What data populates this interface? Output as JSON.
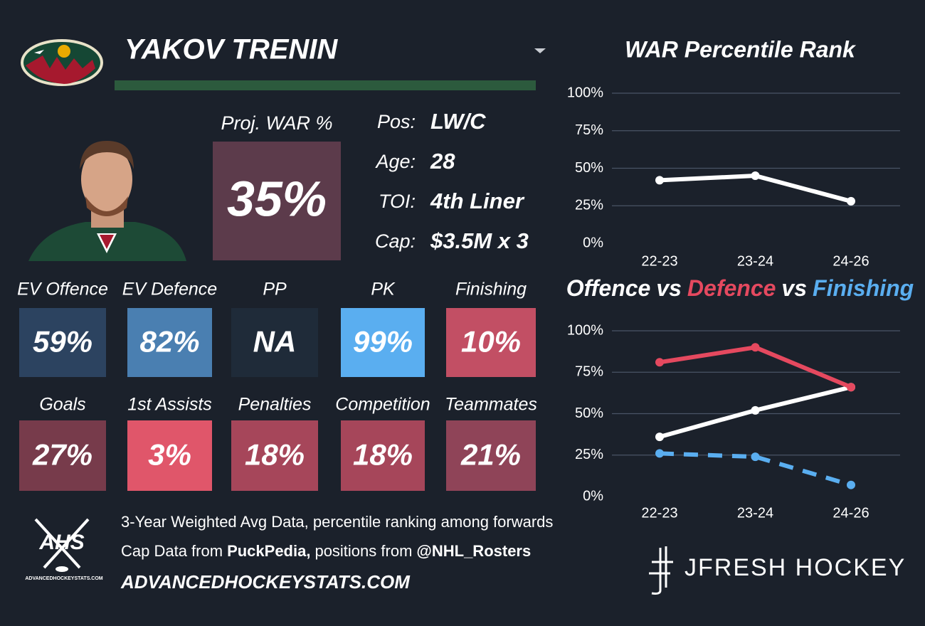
{
  "header": {
    "name": "YAKOV TRENIN"
  },
  "projection": {
    "label": "Proj. WAR %",
    "value": "35%",
    "color": "#5c3b4b"
  },
  "bio": [
    {
      "label": "Pos:",
      "value": "LW/C"
    },
    {
      "label": "Age:",
      "value": "28"
    },
    {
      "label": "TOI:",
      "value": "4th Liner"
    },
    {
      "label": "Cap:",
      "value": "$3.5M x 3"
    }
  ],
  "tiles": [
    {
      "label": "EV Offence",
      "value": "59%",
      "color": "#2c4360"
    },
    {
      "label": "EV Defence",
      "value": "82%",
      "color": "#4a7fb1"
    },
    {
      "label": "PP",
      "value": "NA",
      "color": "#1f2b39"
    },
    {
      "label": "PK",
      "value": "99%",
      "color": "#5aaef0"
    },
    {
      "label": "Finishing",
      "value": "10%",
      "color": "#c24f64"
    },
    {
      "label": "Goals",
      "value": "27%",
      "color": "#773b4b"
    },
    {
      "label": "1st Assists",
      "value": "3%",
      "color": "#e0566a"
    },
    {
      "label": "Penalties",
      "value": "18%",
      "color": "#a6465a"
    },
    {
      "label": "Competition",
      "value": "18%",
      "color": "#a6465a"
    },
    {
      "label": "Teammates",
      "value": "21%",
      "color": "#8f4458"
    }
  ],
  "footer": {
    "logo_text": "AHS",
    "logo_caption": "ADVANCEDHOCKEYSTATS.COM",
    "line1": "3-Year Weighted Avg Data, percentile ranking among forwards",
    "line2": [
      "Cap Data from",
      "PuckPedia,",
      "positions from",
      "@NHL_Rosters"
    ],
    "site": "ADVANCEDHOCKEYSTATS.COM",
    "brand": "JFRESH HOCKEY"
  },
  "chart_data": [
    {
      "type": "line",
      "title": "WAR Percentile Rank",
      "categories": [
        "22-23",
        "23-24",
        "24-26"
      ],
      "series": [
        {
          "name": "WAR",
          "color": "#ffffff",
          "values": [
            42,
            45,
            28
          ]
        }
      ],
      "ylim": [
        0,
        100
      ],
      "yticks": [
        {
          "value": 0,
          "label": "0%"
        },
        {
          "value": 25,
          "label": "25%"
        },
        {
          "value": 50,
          "label": "50%"
        },
        {
          "value": 75,
          "label": "75%"
        },
        {
          "value": 100,
          "label": "100%"
        }
      ],
      "grid": true
    },
    {
      "type": "line",
      "title_joiner": "vs",
      "categories": [
        "22-23",
        "23-24",
        "24-26"
      ],
      "series": [
        {
          "name": "Offence",
          "color": "#ffffff",
          "values": [
            36,
            52,
            66
          ]
        },
        {
          "name": "Defence",
          "color": "#e5495f",
          "values": [
            81,
            90,
            66
          ]
        },
        {
          "name": "Finishing",
          "color": "#5aaef0",
          "values": [
            26,
            24,
            7
          ],
          "dashed": true
        }
      ],
      "ylim": [
        0,
        100
      ],
      "yticks": [
        {
          "value": 0,
          "label": "0%"
        },
        {
          "value": 25,
          "label": "25%"
        },
        {
          "value": 50,
          "label": "50%"
        },
        {
          "value": 75,
          "label": "75%"
        },
        {
          "value": 100,
          "label": "100%"
        }
      ],
      "grid": true
    }
  ]
}
